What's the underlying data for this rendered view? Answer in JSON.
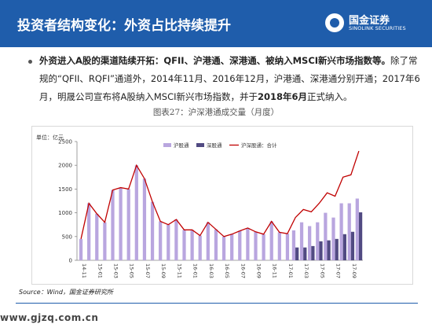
{
  "header": {
    "title": "投资者结构变化：外资占比持续提升",
    "logo_cn": "国金证券",
    "logo_en": "SINOLINK SECURITIES"
  },
  "bullet": {
    "lead": "外资进入A股的渠道陆续开拓：QFII、沪港通、深港通、被纳入MSCI新兴市场指数等。",
    "body": "除了常规的“QFII、RQFI”通道外，2014年11月、2016年12月，沪港通、深港通分别开通；2017年6月，明晟公司宣布将A股纳入MSCI新兴市场指数，并于",
    "highlight": "2018年6月",
    "tail": "正式纳入。"
  },
  "chart_caption": "图表27：沪深港通成交量（月度）",
  "source": "Source：Wind，国金证券研究所",
  "watermark": "www.gjzq.com.cn",
  "chart_data": {
    "type": "bar",
    "unit_label": "单位：亿元",
    "x_tick_labels": [
      "14-11",
      "15-01",
      "15-03",
      "15-05",
      "15-07",
      "15-09",
      "15-11",
      "16-01",
      "16-03",
      "16-05",
      "16-07",
      "16-09",
      "16-11",
      "17-01",
      "17-03",
      "17-05",
      "17-07",
      "17-09"
    ],
    "ylim": [
      0,
      2500
    ],
    "yticks": [
      0,
      500,
      1000,
      1500,
      2000,
      2500
    ],
    "legend": {
      "position": "top-center"
    },
    "series": [
      {
        "name": "沪股通",
        "kind": "bar",
        "color": "#b9a6df",
        "values": [
          450,
          1200,
          980,
          800,
          1480,
          1530,
          1500,
          2000,
          1720,
          1230,
          820,
          750,
          860,
          640,
          640,
          520,
          800,
          650,
          500,
          550,
          620,
          680,
          600,
          550,
          820,
          590,
          560,
          630,
          800,
          720,
          800,
          1000,
          900,
          1200,
          1200,
          1300
        ]
      },
      {
        "name": "深股通",
        "kind": "bar",
        "color": "#514a82",
        "values": [
          0,
          0,
          0,
          0,
          0,
          0,
          0,
          0,
          0,
          0,
          0,
          0,
          0,
          0,
          0,
          0,
          0,
          0,
          0,
          0,
          0,
          0,
          0,
          0,
          0,
          0,
          0,
          270,
          270,
          300,
          400,
          420,
          450,
          550,
          600,
          1010
        ]
      },
      {
        "name": "沪深股通：合计",
        "kind": "line",
        "color": "#c00000",
        "values": [
          450,
          1200,
          980,
          800,
          1480,
          1530,
          1500,
          2000,
          1720,
          1230,
          820,
          750,
          860,
          640,
          640,
          520,
          800,
          650,
          500,
          550,
          620,
          680,
          600,
          550,
          820,
          590,
          560,
          900,
          1070,
          1020,
          1200,
          1420,
          1350,
          1750,
          1800,
          2300
        ]
      }
    ]
  }
}
